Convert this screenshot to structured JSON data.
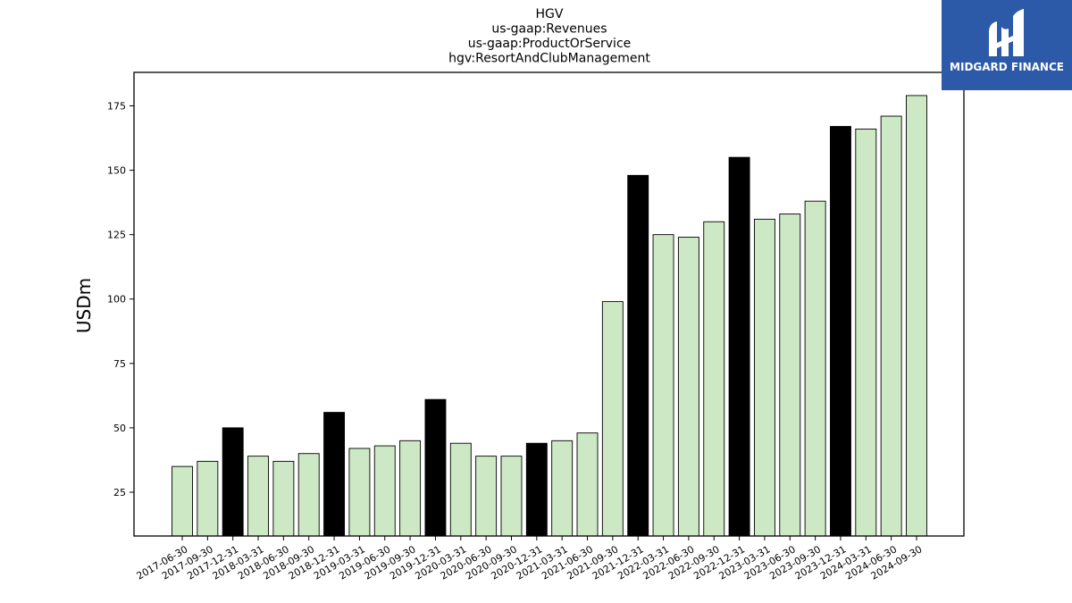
{
  "chart_data": {
    "type": "bar",
    "title_lines": [
      "HGV",
      "us-gaap:Revenues",
      "us-gaap:ProductOrService",
      "hgv:ResortAndClubManagement"
    ],
    "ylabel": "USDm",
    "ylim": [
      8,
      188
    ],
    "yticks": [
      25,
      50,
      75,
      100,
      125,
      150,
      175
    ],
    "grid": false,
    "categories": [
      "2017-06-30",
      "2017-09-30",
      "2017-12-31",
      "2018-03-31",
      "2018-06-30",
      "2018-09-30",
      "2018-12-31",
      "2019-03-31",
      "2019-06-30",
      "2019-09-30",
      "2019-12-31",
      "2020-03-31",
      "2020-06-30",
      "2020-09-30",
      "2020-12-31",
      "2021-03-31",
      "2021-06-30",
      "2021-09-30",
      "2021-12-31",
      "2022-03-31",
      "2022-06-30",
      "2022-09-30",
      "2022-12-31",
      "2023-03-31",
      "2023-06-30",
      "2023-09-30",
      "2023-12-31",
      "2024-03-31",
      "2024-06-30",
      "2024-09-30"
    ],
    "values": [
      35,
      37,
      50,
      39,
      37,
      40,
      56,
      42,
      43,
      45,
      61,
      44,
      39,
      39,
      44,
      45,
      48,
      99,
      148,
      125,
      124,
      130,
      155,
      131,
      133,
      138,
      167,
      166,
      171,
      179
    ],
    "highlight": [
      false,
      false,
      true,
      false,
      false,
      false,
      true,
      false,
      false,
      false,
      true,
      false,
      false,
      false,
      true,
      false,
      false,
      false,
      true,
      false,
      false,
      false,
      true,
      false,
      false,
      false,
      true,
      false,
      false,
      false
    ],
    "colors": {
      "normal": "#cde8c4",
      "highlight": "#000000",
      "edge": "#000000"
    }
  },
  "logo": {
    "text": "MIDGARD FINANCE",
    "background": "#2c5aa8",
    "icon": "midgard-logo-icon"
  }
}
